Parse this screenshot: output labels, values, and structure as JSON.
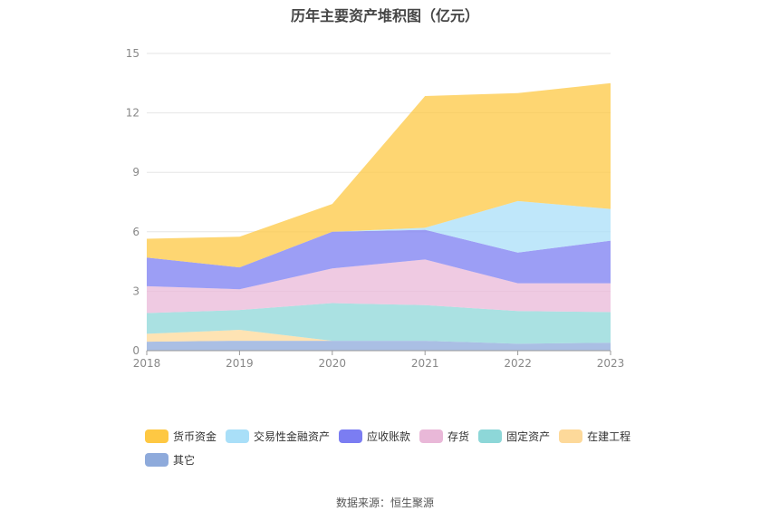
{
  "chart_data": {
    "type": "area",
    "stacked": true,
    "title": "历年主要资产堆积图（亿元）",
    "x": [
      "2018",
      "2019",
      "2020",
      "2021",
      "2022",
      "2023"
    ],
    "ylim": [
      0,
      15
    ],
    "yticks": [
      "0",
      "3",
      "6",
      "9",
      "12",
      "15"
    ],
    "grid": true,
    "legend_position": "bottom",
    "series": [
      {
        "name": "其它",
        "color": "#8eaadb",
        "values": [
          0.45,
          0.5,
          0.5,
          0.5,
          0.35,
          0.4
        ]
      },
      {
        "name": "在建工程",
        "color": "#fdd99a",
        "values": [
          0.4,
          0.55,
          0.0,
          0.0,
          0.0,
          0.0
        ]
      },
      {
        "name": "固定资产",
        "color": "#8dd7d8",
        "values": [
          1.05,
          1.0,
          1.9,
          1.8,
          1.65,
          1.55
        ]
      },
      {
        "name": "存货",
        "color": "#e9b8d8",
        "values": [
          1.35,
          1.05,
          1.75,
          2.3,
          1.4,
          1.45
        ]
      },
      {
        "name": "应收账款",
        "color": "#7b7df2",
        "values": [
          1.45,
          1.1,
          1.85,
          1.5,
          1.55,
          2.15
        ]
      },
      {
        "name": "交易性金融资产",
        "color": "#a9dff8",
        "values": [
          0.0,
          0.0,
          0.0,
          0.1,
          2.6,
          1.6
        ]
      },
      {
        "name": "货币资金",
        "color": "#fec843",
        "values": [
          0.95,
          1.55,
          1.4,
          6.65,
          5.45,
          6.35
        ]
      }
    ],
    "legend_order": [
      "货币资金",
      "交易性金融资产",
      "应收账款",
      "存货",
      "固定资产",
      "在建工程",
      "其它"
    ]
  },
  "source": "数据来源：恒生聚源"
}
